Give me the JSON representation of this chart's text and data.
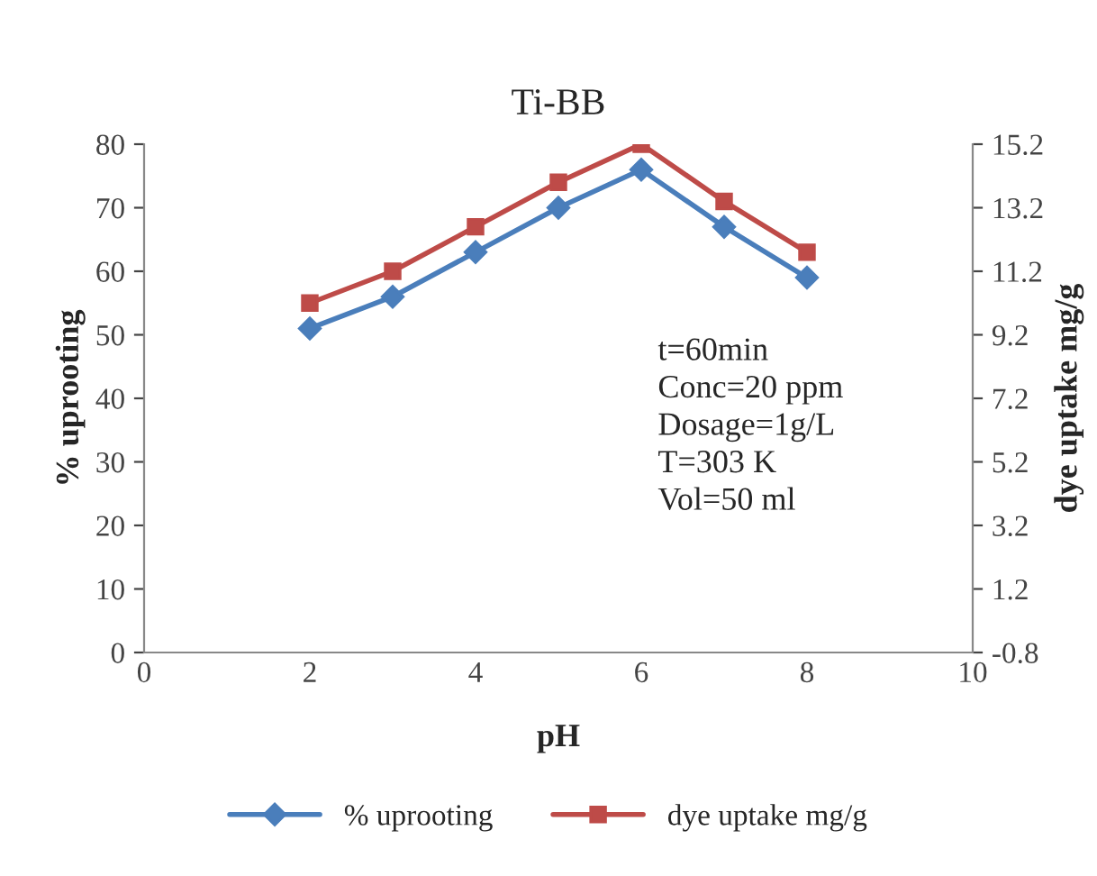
{
  "chart_data": {
    "type": "line",
    "title": "Ti-BB",
    "xlabel": "pH",
    "ylabel": "% uprooting",
    "y2label": "dye uptake mg/g",
    "x": [
      2,
      3,
      4,
      5,
      6,
      7,
      8
    ],
    "series": [
      {
        "name": "% uprooting",
        "color": "#4a7ebb",
        "marker": "diamond",
        "values": [
          51,
          56,
          63,
          70,
          76,
          67,
          59
        ]
      },
      {
        "name": "dye uptake mg/g",
        "color": "#be4b48",
        "marker": "square",
        "axis": "y2",
        "values": [
          10.2,
          11.2,
          12.6,
          14.0,
          15.2,
          13.4,
          11.8
        ]
      }
    ],
    "xlim": [
      0,
      10
    ],
    "xticks": [
      0,
      2,
      4,
      6,
      8,
      10
    ],
    "ylim": [
      0,
      80
    ],
    "yticks": [
      0,
      10,
      20,
      30,
      40,
      50,
      60,
      70,
      80
    ],
    "y2lim": [
      -0.8,
      15.2
    ],
    "y2ticks": [
      -0.8,
      1.2,
      3.2,
      5.2,
      7.2,
      9.2,
      11.2,
      13.2,
      15.2
    ],
    "annotations": [
      "t=60min\nConc=20 ppm\nDosage=1g/L\nT=303 K\nVol=50 ml"
    ],
    "legend": "bottom",
    "grid": false,
    "line_style": "solid"
  }
}
